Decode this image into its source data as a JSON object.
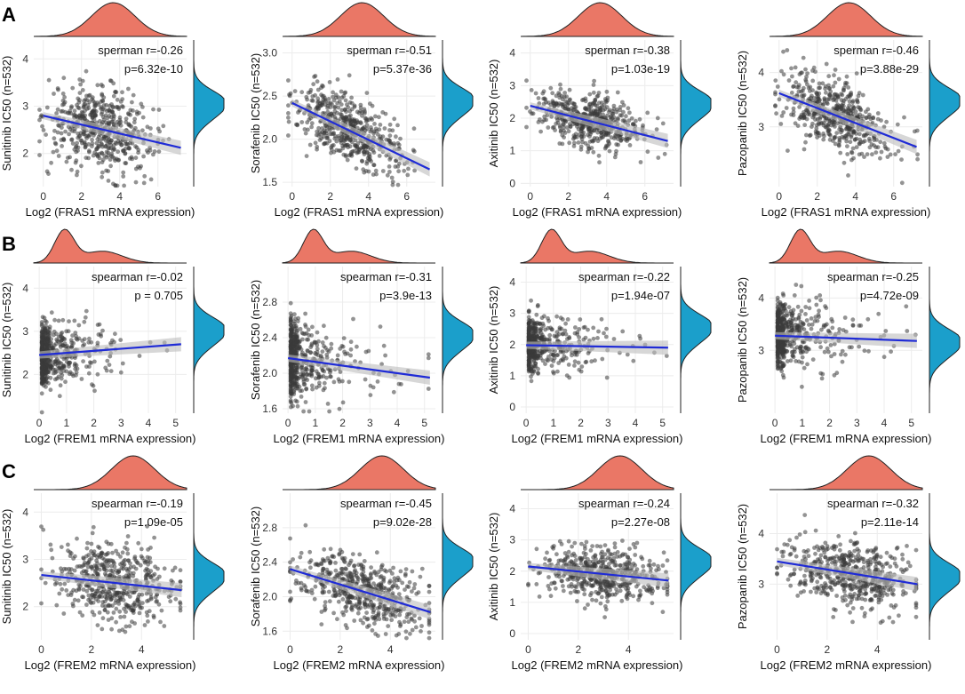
{
  "colors": {
    "point": "#3a3a3a",
    "fit_line": "#1f2bd6",
    "ci_band": "#bdbdbd",
    "top_density": "#ea7766",
    "right_density": "#1b9fcb",
    "grid": "#ececec"
  },
  "row_labels": [
    "A",
    "B",
    "C"
  ],
  "chart_data": [
    {
      "id": "A1",
      "row": 0,
      "col": 0,
      "type": "scatter",
      "xlabel": "Log2 (FRAS1 mRNA expression)",
      "ylabel": "Sunitinib IC50 (n=532)",
      "xlim": [
        -0.5,
        7.5
      ],
      "ylim": [
        1.3,
        4.4
      ],
      "xticks": [
        0,
        2,
        4,
        6
      ],
      "yticks": [
        2,
        3,
        4
      ],
      "spearman_label": "sperman r=-0.26",
      "p_label": "p=6.32e-10",
      "fit": {
        "x0": 0,
        "y0": 2.8,
        "x1": 7.2,
        "y1": 2.12
      },
      "n": 532,
      "x_dist": {
        "mean": 3.0,
        "sd": 1.4
      },
      "y_noise": 0.42,
      "top_peak": 0.52,
      "right_peak": 0.42
    },
    {
      "id": "A2",
      "row": 0,
      "col": 1,
      "type": "scatter",
      "xlabel": "Log2 (FRAS1 mRNA expression)",
      "ylabel": "Sorafenib IC50 (n=532)",
      "xlim": [
        -0.5,
        7.5
      ],
      "ylim": [
        1.45,
        3.15
      ],
      "xticks": [
        0,
        2,
        4,
        6
      ],
      "yticks": [
        "1.5",
        "2.0",
        "2.5",
        "3.0"
      ],
      "spearman_label": "sperman r=-0.51",
      "p_label": "p=5.37e-36",
      "fit": {
        "x0": 0,
        "y0": 2.42,
        "x1": 7.2,
        "y1": 1.65
      },
      "n": 532,
      "x_dist": {
        "mean": 3.0,
        "sd": 1.4
      },
      "y_noise": 0.2,
      "top_peak": 0.52,
      "right_peak": 0.4
    },
    {
      "id": "A3",
      "row": 0,
      "col": 2,
      "type": "scatter",
      "xlabel": "Log2 (FRAS1 mRNA expression)",
      "ylabel": "Axitinib IC50 (n=532)",
      "xlim": [
        -0.5,
        7.5
      ],
      "ylim": [
        -0.1,
        4.4
      ],
      "xticks": [
        0,
        2,
        4,
        6
      ],
      "yticks": [
        0,
        1,
        2,
        3,
        4
      ],
      "spearman_label": "sperman r=-0.38",
      "p_label": "p=1.03e-19",
      "fit": {
        "x0": 0,
        "y0": 2.38,
        "x1": 7.2,
        "y1": 1.3
      },
      "n": 532,
      "x_dist": {
        "mean": 3.0,
        "sd": 1.4
      },
      "y_noise": 0.42,
      "top_peak": 0.52,
      "right_peak": 0.42
    },
    {
      "id": "A4",
      "row": 0,
      "col": 3,
      "type": "scatter",
      "xlabel": "Log2 (FRAS1 mRNA expression)",
      "ylabel": "Pazopanib IC50 (n=532)",
      "xlim": [
        -0.5,
        7.5
      ],
      "ylim": [
        1.9,
        4.6
      ],
      "xticks": [
        0,
        2,
        4,
        6
      ],
      "yticks": [
        3,
        4
      ],
      "spearman_label": "sperman r=-0.46",
      "p_label": "p=3.88e-29",
      "fit": {
        "x0": 0,
        "y0": 3.62,
        "x1": 7.2,
        "y1": 2.63
      },
      "n": 532,
      "x_dist": {
        "mean": 3.0,
        "sd": 1.4
      },
      "y_noise": 0.32,
      "top_peak": 0.52,
      "right_peak": 0.4
    },
    {
      "id": "B1",
      "row": 1,
      "col": 0,
      "type": "scatter",
      "xlabel": "Log2 (FREM1 mRNA expression)",
      "ylabel": "Sunitinib IC50 (n=532)",
      "xlim": [
        -0.2,
        5.4
      ],
      "ylim": [
        1.1,
        4.5
      ],
      "xticks": [
        0,
        1,
        2,
        3,
        4,
        5
      ],
      "yticks": [
        2,
        3,
        4
      ],
      "spearman_label": "spearman r=-0.02",
      "p_label": "p = 0.705",
      "fit": {
        "x0": 0,
        "y0": 2.45,
        "x1": 5.2,
        "y1": 2.7
      },
      "n": 532,
      "x_dist": {
        "skew": true
      },
      "y_noise": 0.38,
      "top_peak": 0.2,
      "right_peak": 0.42
    },
    {
      "id": "B2",
      "row": 1,
      "col": 1,
      "type": "scatter",
      "xlabel": "Log2 (FREM1 mRNA expression)",
      "ylabel": "Sorafenib IC50 (n=532)",
      "xlim": [
        -0.2,
        5.4
      ],
      "ylim": [
        1.55,
        3.2
      ],
      "xticks": [
        0,
        1,
        2,
        3,
        4,
        5
      ],
      "yticks": [
        "1.6",
        "2.0",
        "2.4",
        "2.8"
      ],
      "spearman_label": "spearman r=-0.31",
      "p_label": "p=3.9e-13",
      "fit": {
        "x0": 0,
        "y0": 2.17,
        "x1": 5.2,
        "y1": 1.95
      },
      "n": 532,
      "x_dist": {
        "skew": true
      },
      "y_noise": 0.22,
      "top_peak": 0.2,
      "right_peak": 0.45
    },
    {
      "id": "B3",
      "row": 1,
      "col": 2,
      "type": "scatter",
      "xlabel": "Log2 (FREM1 mRNA expression)",
      "ylabel": "Axitinib IC50 (n=532)",
      "xlim": [
        -0.2,
        5.4
      ],
      "ylim": [
        -0.2,
        4.5
      ],
      "xticks": [
        0,
        1,
        2,
        3,
        4,
        5
      ],
      "yticks": [
        0,
        1,
        2,
        3,
        4
      ],
      "spearman_label": "spearman r=-0.22",
      "p_label": "p=1.94e-07",
      "fit": {
        "x0": 0,
        "y0": 1.98,
        "x1": 5.2,
        "y1": 1.9
      },
      "n": 532,
      "x_dist": {
        "skew": true
      },
      "y_noise": 0.42,
      "top_peak": 0.2,
      "right_peak": 0.4
    },
    {
      "id": "B4",
      "row": 1,
      "col": 3,
      "type": "scatter",
      "xlabel": "Log2 (FREM1 mRNA expression)",
      "ylabel": "Pazopanib IC50 (n=532)",
      "xlim": [
        -0.2,
        5.4
      ],
      "ylim": [
        1.8,
        4.6
      ],
      "xticks": [
        0,
        1,
        2,
        3,
        4,
        5
      ],
      "yticks": [
        3,
        4
      ],
      "spearman_label": "spearman r=-0.25",
      "p_label": "p=4.72e-09",
      "fit": {
        "x0": 0,
        "y0": 3.28,
        "x1": 5.2,
        "y1": 3.18
      },
      "n": 532,
      "x_dist": {
        "skew": true
      },
      "y_noise": 0.32,
      "top_peak": 0.2,
      "right_peak": 0.5
    },
    {
      "id": "C1",
      "row": 2,
      "col": 0,
      "type": "scatter",
      "xlabel": "Log2 (FREM2 mRNA expression)",
      "ylabel": "Sunitinib IC50 (n=532)",
      "xlim": [
        -0.3,
        5.8
      ],
      "ylim": [
        1.3,
        4.4
      ],
      "xticks": [
        0,
        2,
        4
      ],
      "yticks": [
        2,
        3,
        4
      ],
      "spearman_label": "spearman r=-0.19",
      "p_label": "p=1.09e-05",
      "fit": {
        "x0": 0,
        "y0": 2.67,
        "x1": 5.6,
        "y1": 2.35
      },
      "n": 532,
      "x_dist": {
        "mean": 2.9,
        "sd": 1.2
      },
      "y_noise": 0.4,
      "top_peak": 0.65,
      "right_peak": 0.55
    },
    {
      "id": "C2",
      "row": 2,
      "col": 1,
      "type": "scatter",
      "xlabel": "Log2 (FREM2 mRNA expression)",
      "ylabel": "Sorafenib IC50 (n=532)",
      "xlim": [
        -0.3,
        5.8
      ],
      "ylim": [
        1.5,
        3.2
      ],
      "xticks": [
        0,
        2,
        4
      ],
      "yticks": [
        "1.6",
        "2.0",
        "2.4",
        "2.8"
      ],
      "spearman_label": "spearman r=-0.45",
      "p_label": "p=9.02e-28",
      "fit": {
        "x0": 0,
        "y0": 2.32,
        "x1": 5.6,
        "y1": 1.82
      },
      "n": 532,
      "x_dist": {
        "mean": 2.9,
        "sd": 1.2
      },
      "y_noise": 0.2,
      "top_peak": 0.65,
      "right_peak": 0.45
    },
    {
      "id": "C3",
      "row": 2,
      "col": 2,
      "type": "scatter",
      "xlabel": "Log2 (FREM2 mRNA expression)",
      "ylabel": "Axitinib IC50 (n=532)",
      "xlim": [
        -0.3,
        5.8
      ],
      "ylim": [
        -0.2,
        4.5
      ],
      "xticks": [
        0,
        2,
        4
      ],
      "yticks": [
        0,
        1,
        2,
        3,
        4
      ],
      "spearman_label": "spearman r=-0.24",
      "p_label": "p=2.27e-08",
      "fit": {
        "x0": 0,
        "y0": 2.15,
        "x1": 5.6,
        "y1": 1.7
      },
      "n": 532,
      "x_dist": {
        "mean": 2.9,
        "sd": 1.2
      },
      "y_noise": 0.42,
      "top_peak": 0.65,
      "right_peak": 0.45
    },
    {
      "id": "C4",
      "row": 2,
      "col": 3,
      "type": "scatter",
      "xlabel": "Log2 (FREM2 mRNA expression)",
      "ylabel": "Pazopanib IC50 (n=532)",
      "xlim": [
        -0.3,
        5.8
      ],
      "ylim": [
        1.9,
        4.8
      ],
      "xticks": [
        0,
        2,
        4
      ],
      "yticks": [
        3,
        4
      ],
      "spearman_label": "spearman r=-0.32",
      "p_label": "p=2.11e-14",
      "fit": {
        "x0": 0,
        "y0": 3.45,
        "x1": 5.6,
        "y1": 3.0
      },
      "n": 532,
      "x_dist": {
        "mean": 2.9,
        "sd": 1.2
      },
      "y_noise": 0.32,
      "top_peak": 0.65,
      "right_peak": 0.55
    }
  ]
}
